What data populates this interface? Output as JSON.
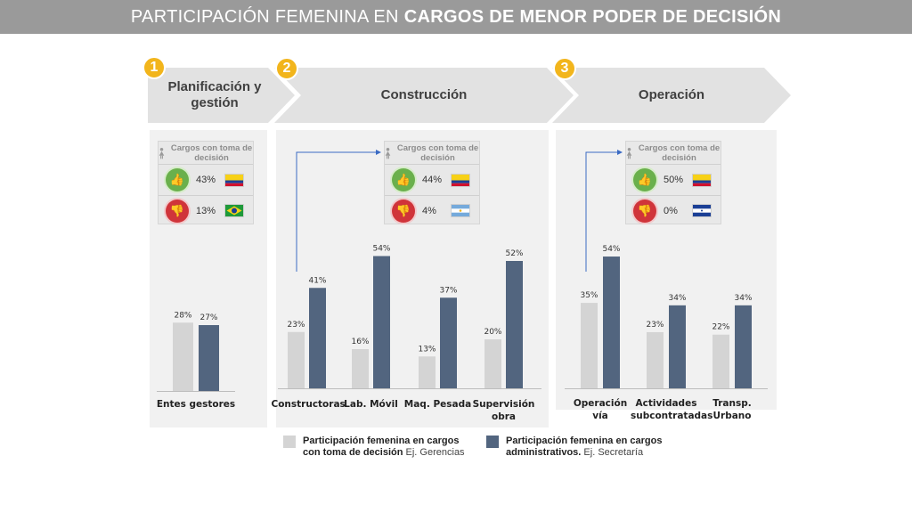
{
  "title": {
    "light": "PARTICIPACIÓN FEMENINA EN",
    "bold": "CARGOS DE MENOR PODER DE DECISIÓN"
  },
  "stages": [
    {
      "number": "1",
      "label": "Planificación y gestión"
    },
    {
      "number": "2",
      "label": "Construcción"
    },
    {
      "number": "3",
      "label": "Operación"
    }
  ],
  "info_boxes": [
    {
      "header": "Cargos con toma de decisión",
      "up_value": "43%",
      "up_flag": "colombia-flag-icon",
      "down_value": "13%",
      "down_flag": "brazil-flag-icon"
    },
    {
      "header": "Cargos con toma de decisión",
      "up_value": "44%",
      "up_flag": "colombia-flag-icon",
      "down_value": "4%",
      "down_flag": "argentina-flag-icon"
    },
    {
      "header": "Cargos con toma de decisión",
      "up_value": "50%",
      "up_flag": "colombia-flag-icon",
      "down_value": "0%",
      "down_flag": "honduras-flag-icon"
    }
  ],
  "colors": {
    "light_series": "#d4d4d4",
    "dark_series": "#52657f",
    "badge": "#f2b51c",
    "arrow": "#e2e2e2",
    "connector": "#3a6bc4"
  },
  "chart_data": [
    {
      "type": "bar",
      "categories": [
        "Entes gestores"
      ],
      "series": [
        {
          "name": "Participación femenina en cargos con toma de decisión",
          "values": [
            28
          ]
        },
        {
          "name": "Participación femenina en cargos administrativos.",
          "values": [
            27
          ]
        }
      ],
      "labels_light": [
        "28%"
      ],
      "labels_dark": [
        "27%"
      ],
      "ylim": [
        0,
        60
      ]
    },
    {
      "type": "bar",
      "categories": [
        "Constructoras",
        "Lab. Móvil",
        "Maq. Pesada",
        "Supervisión obra"
      ],
      "series": [
        {
          "name": "Participación femenina en cargos con toma de decisión",
          "values": [
            23,
            16,
            13,
            20
          ]
        },
        {
          "name": "Participación femenina en cargos administrativos.",
          "values": [
            41,
            54,
            37,
            52
          ]
        }
      ],
      "labels_light": [
        "23%",
        "16%",
        "13%",
        "20%"
      ],
      "labels_dark": [
        "41%",
        "54%",
        "37%",
        "52%"
      ],
      "ylim": [
        0,
        60
      ]
    },
    {
      "type": "bar",
      "categories": [
        "Operación vía",
        "Actividades subcontratadas",
        "Transp. Urbano"
      ],
      "series": [
        {
          "name": "Participación femenina en cargos con toma de decisión",
          "values": [
            35,
            23,
            22
          ]
        },
        {
          "name": "Participación femenina en cargos administrativos.",
          "values": [
            54,
            34,
            34
          ]
        }
      ],
      "labels_light": [
        "35%",
        "23%",
        "22%"
      ],
      "labels_dark": [
        "54%",
        "34%",
        "34%"
      ],
      "ylim": [
        0,
        60
      ]
    }
  ],
  "legend": [
    {
      "bold": "Participación femenina en cargos con toma de decisión",
      "example": "Ej. Gerencias"
    },
    {
      "bold": "Participación femenina en cargos administrativos.",
      "example": "Ej. Secretaría"
    }
  ]
}
